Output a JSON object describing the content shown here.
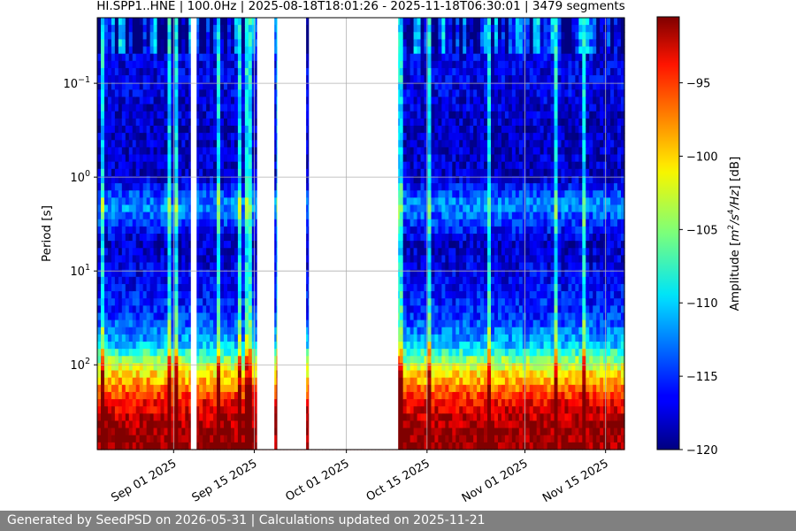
{
  "chart_data": {
    "type": "heatmap",
    "title": "HI.SPP1..HNE | 100.0Hz | 2025-08-18T18:01:26 - 2025-11-18T06:30:01 | 3479 segments",
    "xlabel": "",
    "ylabel": "Period [s]",
    "x_range": [
      "2025-08-18T18:01:26",
      "2025-11-18T06:30:01"
    ],
    "x_ticks": [
      "2025-09-01",
      "2025-09-15",
      "2025-10-01",
      "2025-10-15",
      "2025-11-01",
      "2025-11-15"
    ],
    "x_tick_labels": [
      "Sep 01 2025",
      "Sep 15 2025",
      "Oct 01 2025",
      "Oct 15 2025",
      "Nov 01 2025",
      "Nov 15 2025"
    ],
    "y_scale": "log",
    "y_inverted": true,
    "y_range": [
      0.02,
      800
    ],
    "y_ticks": [
      0.1,
      1,
      10,
      100
    ],
    "y_tick_labels": [
      {
        "base": "10",
        "exp": "−1"
      },
      {
        "base": "10",
        "exp": "0"
      },
      {
        "base": "10",
        "exp": "1"
      },
      {
        "base": "10",
        "exp": "2"
      }
    ],
    "grid": true,
    "data_gaps": [
      [
        "2025-09-04",
        "2025-09-05"
      ],
      [
        "2025-09-15T12:00:00",
        "2025-09-18T12:00:00"
      ],
      [
        "2025-09-19",
        "2025-09-24"
      ],
      [
        "2025-09-24T12:00:00",
        "2025-10-10"
      ]
    ],
    "colorbar": {
      "label_prefix": "Amplitude [",
      "label_unit_m": "m",
      "label_exp_m": "2",
      "label_unit_s": "/s",
      "label_exp_s": "4",
      "label_unit_hz": "/Hz",
      "label_suffix": "] [dB]",
      "colormap": "jet",
      "range": [
        -120,
        -90.5
      ],
      "ticks": [
        -120,
        -115,
        -110,
        -105,
        -100,
        -95
      ],
      "tick_labels": [
        "−120",
        "−115",
        "−110",
        "−105",
        "−100",
        "−95"
      ]
    },
    "spectral_profile": [
      {
        "period": 0.02,
        "db": -117
      },
      {
        "period": 0.03,
        "db": -117
      },
      {
        "period": 0.05,
        "db": -117
      },
      {
        "period": 0.1,
        "db": -117
      },
      {
        "period": 0.3,
        "db": -118
      },
      {
        "period": 1,
        "db": -118
      },
      {
        "period": 2,
        "db": -112
      },
      {
        "period": 5,
        "db": -118
      },
      {
        "period": 10,
        "db": -117
      },
      {
        "period": 30,
        "db": -115
      },
      {
        "period": 60,
        "db": -111
      },
      {
        "period": 100,
        "db": -103
      },
      {
        "period": 150,
        "db": -99
      },
      {
        "period": 250,
        "db": -94
      },
      {
        "period": 500,
        "db": -91
      },
      {
        "period": 800,
        "db": -91
      }
    ]
  },
  "footer": {
    "text": "Generated by SeedPSD on 2026-05-31 | Calculations updated on 2025-11-21"
  }
}
